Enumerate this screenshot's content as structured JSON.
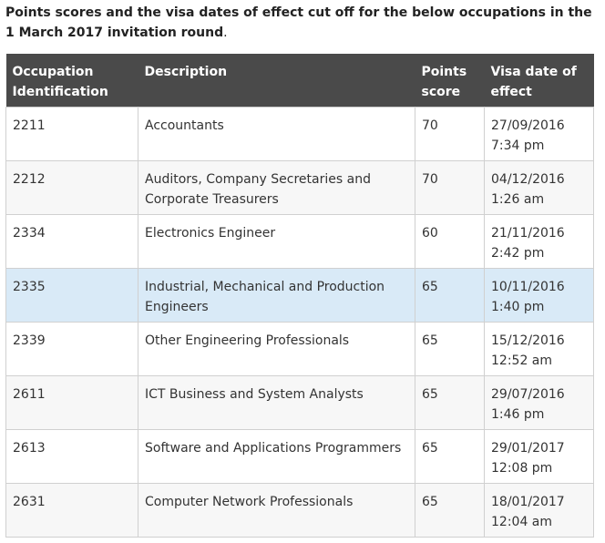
{
  "intro": {
    "bold_text": "Points scores and the visa dates of effect cut off for the below occupations in the 1 March 2017 invitation round",
    "suffix": "."
  },
  "table": {
    "headers": {
      "occupation": "Occupation Identification",
      "description": "Description",
      "points": "Points score",
      "visa_date": "Visa date of effect"
    },
    "rows": [
      {
        "occupation": "2211",
        "description": "Accountants",
        "points": "70",
        "date": "27/09/2016",
        "time": "7:34 pm"
      },
      {
        "occupation": "2212",
        "description": "Auditors, Company Secretaries and Corporate Treasurers",
        "points": "70",
        "date": "04/12/2016",
        "time": "1:26 am"
      },
      {
        "occupation": "2334",
        "description": "Electronics Engineer",
        "points": "60",
        "date": "21/11/2016",
        "time": "2:42 pm"
      },
      {
        "occupation": "2335",
        "description": "Industrial, Mechanical and Production Engineers",
        "points": "65",
        "date": "10/11/2016",
        "time": "1:40 pm"
      },
      {
        "occupation": "2339",
        "description": "Other Engineering Professionals",
        "points": "65",
        "date": "15/12/2016",
        "time": "12:52 am"
      },
      {
        "occupation": "2611",
        "description": "ICT Business and System Analysts",
        "points": "65",
        "date": "29/07/2016",
        "time": "1:46 pm"
      },
      {
        "occupation": "2613",
        "description": "Software and Applications Programmers",
        "points": "65",
        "date": "29/01/2017",
        "time": "12:08 pm"
      },
      {
        "occupation": "2631",
        "description": "Computer Network Professionals",
        "points": "65",
        "date": "18/01/2017",
        "time": "12:04 am"
      }
    ]
  },
  "colors": {
    "header_bg": "#4a4a4a",
    "row_alt_bg": "#f7f7f7",
    "row_highlight_bg": "#d9eaf7",
    "border": "#d0d0d0"
  }
}
